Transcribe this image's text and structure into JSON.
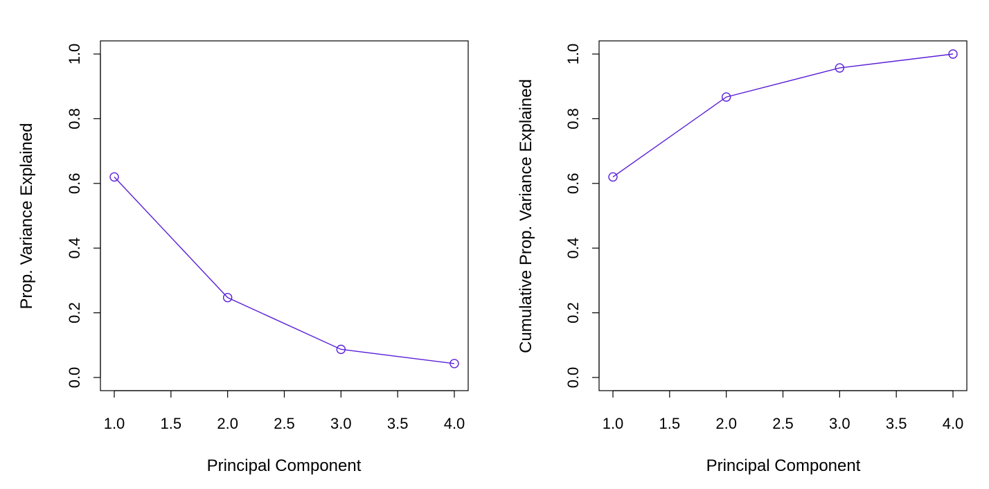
{
  "colors": {
    "series": "#5a1fd6",
    "axis": "#000000",
    "background": "#ffffff"
  },
  "chart_data": [
    {
      "type": "line",
      "title": "",
      "xlabel": "Principal Component",
      "ylabel": "Prop. Variance Explained",
      "x": [
        1,
        2,
        3,
        4
      ],
      "series": [
        {
          "values": [
            0.62,
            0.247,
            0.087,
            0.043
          ]
        }
      ],
      "xlim": [
        1,
        4
      ],
      "ylim": [
        0,
        1
      ],
      "xticks": [
        "1.0",
        "1.5",
        "2.0",
        "2.5",
        "3.0",
        "3.5",
        "4.0"
      ],
      "yticks": [
        "0.0",
        "0.2",
        "0.4",
        "0.6",
        "0.8",
        "1.0"
      ],
      "marker": "open-circle",
      "grid": false,
      "legend": "none"
    },
    {
      "type": "line",
      "title": "",
      "xlabel": "Principal Component",
      "ylabel": "Cumulative Prop. Variance Explained",
      "x": [
        1,
        2,
        3,
        4
      ],
      "series": [
        {
          "values": [
            0.62,
            0.867,
            0.957,
            1.0
          ]
        }
      ],
      "xlim": [
        1,
        4
      ],
      "ylim": [
        0,
        1
      ],
      "xticks": [
        "1.0",
        "1.5",
        "2.0",
        "2.5",
        "3.0",
        "3.5",
        "4.0"
      ],
      "yticks": [
        "0.0",
        "0.2",
        "0.4",
        "0.6",
        "0.8",
        "1.0"
      ],
      "marker": "open-circle",
      "grid": false,
      "legend": "none"
    }
  ]
}
